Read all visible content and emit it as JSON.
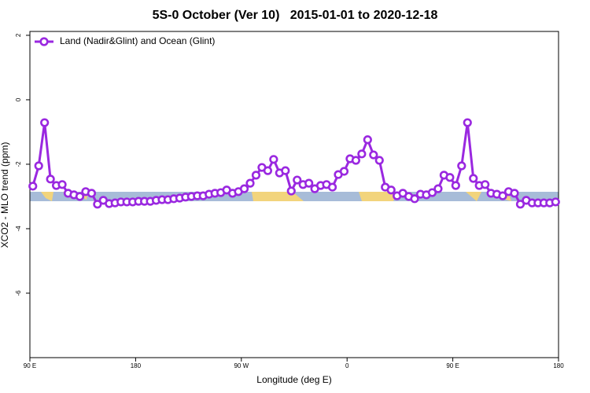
{
  "chart_data": {
    "type": "line",
    "title": "5S-0 October (Ver 10)   2015-01-01 to 2020-12-18",
    "x_label": "Longitude (deg E)",
    "y_label": "XCO2 - MLO trend (ppm)",
    "xlim": [
      90,
      540
    ],
    "xticks": [
      {
        "value": 90,
        "label": "90 E"
      },
      {
        "value": 180,
        "label": "180"
      },
      {
        "value": 270,
        "label": "90 W"
      },
      {
        "value": 360,
        "label": "0"
      },
      {
        "value": 450,
        "label": "90 E"
      },
      {
        "value": 540,
        "label": "180"
      }
    ],
    "ylim": [
      -8,
      2.12
    ],
    "yticks": [
      2,
      0,
      -2,
      -4,
      -6
    ],
    "legend": "top-left",
    "x": [
      92.5,
      97.5,
      102.5,
      107.5,
      112.5,
      117.5,
      122.5,
      127.5,
      132.5,
      137.5,
      142.5,
      147.5,
      152.5,
      157.5,
      162.5,
      167.5,
      172.5,
      177.5,
      182.5,
      187.5,
      192.5,
      197.5,
      202.5,
      207.5,
      212.5,
      217.5,
      222.5,
      227.5,
      232.5,
      237.5,
      242.5,
      247.5,
      252.5,
      257.5,
      262.5,
      267.5,
      272.5,
      277.5,
      282.5,
      287.5,
      292.5,
      297.5,
      302.5,
      307.5,
      312.5,
      317.5,
      322.5,
      327.5,
      332.5,
      337.5,
      342.5,
      347.5,
      352.5,
      357.5,
      362.5,
      367.5,
      372.5,
      377.5,
      382.5,
      387.5,
      392.5,
      397.5,
      402.5,
      407.5,
      412.5,
      417.5,
      422.5,
      427.5,
      432.5,
      437.5,
      442.5,
      447.5,
      452.5,
      457.5,
      462.5,
      467.5,
      472.5,
      477.5,
      482.5,
      487.5,
      492.5,
      497.5,
      502.5,
      507.5,
      512.5,
      517.5,
      522.5,
      527.5,
      532.5,
      537.5
    ],
    "series": [
      {
        "name": "Land (Nadir&Glint) and Ocean (Glint)",
        "color": "#9a28e0",
        "values": [
          -2.68,
          -2.05,
          -0.71,
          -2.46,
          -2.66,
          -2.63,
          -2.9,
          -2.95,
          -3.0,
          -2.85,
          -2.9,
          -3.24,
          -3.12,
          -3.22,
          -3.2,
          -3.17,
          -3.17,
          -3.17,
          -3.15,
          -3.15,
          -3.15,
          -3.12,
          -3.1,
          -3.1,
          -3.07,
          -3.05,
          -3.02,
          -3.0,
          -2.98,
          -2.98,
          -2.93,
          -2.9,
          -2.88,
          -2.8,
          -2.9,
          -2.85,
          -2.76,
          -2.59,
          -2.34,
          -2.1,
          -2.2,
          -1.85,
          -2.27,
          -2.2,
          -2.83,
          -2.49,
          -2.63,
          -2.59,
          -2.76,
          -2.66,
          -2.63,
          -2.71,
          -2.32,
          -2.22,
          -1.83,
          -1.88,
          -1.68,
          -1.24,
          -1.71,
          -1.88,
          -2.71,
          -2.8,
          -2.98,
          -2.9,
          -3.0,
          -3.07,
          -2.93,
          -2.95,
          -2.88,
          -2.76,
          -2.34,
          -2.41,
          -2.66,
          -2.05,
          -0.71,
          -2.44,
          -2.66,
          -2.63,
          -2.9,
          -2.93,
          -2.98,
          -2.85,
          -2.9,
          -3.24,
          -3.12,
          -3.2,
          -3.2,
          -3.2,
          -3.2,
          -3.17
        ]
      }
    ]
  }
}
